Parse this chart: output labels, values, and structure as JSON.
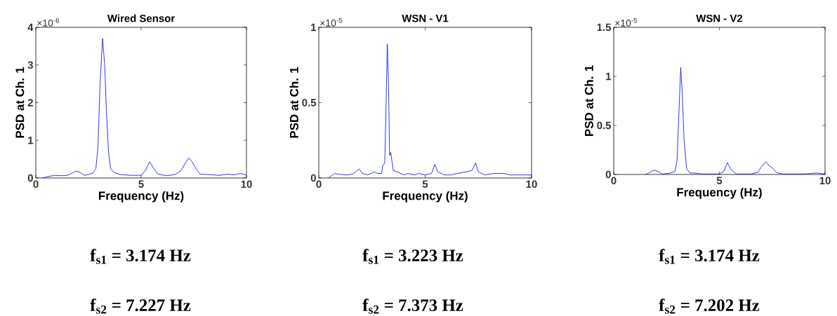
{
  "chart_data": [
    {
      "type": "line",
      "title": "Wired Sensor",
      "xlabel": "Frequency (Hz)",
      "ylabel": "PSD at Ch. 1",
      "annotations": [
        "×10$^{-6}$",
        "f$_{s1}$ = 3.174 Hz",
        "f$_{s2}$ = 7.227 Hz"
      ],
      "x": [
        0.3,
        0.6,
        0.9,
        1.2,
        1.5,
        1.7,
        1.9,
        2.1,
        2.3,
        2.5,
        2.7,
        2.85,
        2.95,
        3.05,
        3.17,
        3.27,
        3.35,
        3.45,
        3.55,
        3.7,
        4.0,
        4.5,
        5.0,
        5.2,
        5.4,
        5.6,
        5.8,
        6.2,
        6.6,
        6.9,
        7.1,
        7.25,
        7.4,
        7.6,
        7.8,
        8.2,
        8.7,
        9.1,
        9.4,
        9.7,
        10
      ],
      "series": [
        {
          "color": "#0000ff",
          "values": [
            0,
            0.04,
            0.07,
            0.06,
            0.07,
            0.12,
            0.18,
            0.15,
            0.07,
            0.09,
            0.13,
            0.25,
            0.8,
            2.5,
            3.7,
            3,
            1.8,
            0.7,
            0.25,
            0.15,
            0.09,
            0.07,
            0.07,
            0.2,
            0.43,
            0.25,
            0.1,
            0.06,
            0.09,
            0.2,
            0.4,
            0.53,
            0.45,
            0.25,
            0.1,
            0.09,
            0.07,
            0.1,
            0.08,
            0.12,
            0.08
          ]
        }
      ],
      "xlim": [
        0,
        10
      ],
      "ylim": [
        0,
        4
      ],
      "xticks": [
        0,
        5,
        10
      ],
      "yticks": [
        0,
        1,
        2,
        3,
        4
      ]
    },
    {
      "type": "line",
      "title": "WSN - V1",
      "xlabel": "Frequency (Hz)",
      "ylabel": "PSD at Ch. 1",
      "annotations": [
        "×10$^{-5}$",
        "f$_{s1}$ = 3.223 Hz",
        "f$_{s2}$ = 7.373 Hz"
      ],
      "x": [
        0.45,
        0.6,
        0.75,
        0.9,
        1.3,
        1.6,
        1.9,
        2.05,
        2.3,
        2.6,
        2.75,
        2.95,
        3.0,
        3.1,
        3.15,
        3.22,
        3.28,
        3.33,
        3.38,
        3.5,
        3.7,
        4.0,
        4.2,
        4.5,
        4.7,
        5.0,
        5.3,
        5.45,
        5.6,
        5.9,
        6.2,
        6.5,
        6.9,
        7.2,
        7.37,
        7.5,
        7.8,
        8.2,
        8.7,
        9.0,
        9.5,
        10
      ],
      "series": [
        {
          "color": "#0000ff",
          "values": [
            0,
            0.015,
            0.03,
            0.025,
            0.02,
            0.025,
            0.06,
            0.03,
            0.02,
            0.04,
            0.03,
            0.03,
            0.08,
            0.1,
            0.4,
            0.89,
            0.6,
            0.15,
            0.17,
            0.05,
            0.04,
            0.02,
            0.03,
            0.02,
            0.03,
            0.02,
            0.03,
            0.09,
            0.04,
            0.02,
            0.02,
            0.03,
            0.04,
            0.05,
            0.1,
            0.04,
            0.02,
            0.03,
            0.03,
            0.02,
            0.02,
            0.02
          ]
        }
      ],
      "xlim": [
        0,
        10
      ],
      "ylim": [
        0,
        1
      ],
      "xticks": [
        0,
        5,
        10
      ],
      "yticks": [
        0,
        0.5,
        1
      ]
    },
    {
      "type": "line",
      "title": "WSN - V2",
      "xlabel": "Frequency (Hz)",
      "ylabel": "PSD at Ch. 1",
      "annotations": [
        "×10$^{-5}$",
        "f$_{s1}$ = 3.174 Hz",
        "f$_{s2}$ = 7.202 Hz"
      ],
      "x": [
        1.5,
        1.7,
        1.9,
        2.1,
        2.3,
        2.6,
        2.9,
        3.0,
        3.08,
        3.17,
        3.25,
        3.33,
        3.45,
        3.6,
        3.8,
        4.2,
        5.0,
        5.2,
        5.38,
        5.55,
        5.8,
        6.5,
        6.8,
        7.0,
        7.2,
        7.35,
        7.5,
        7.7,
        8.0,
        9.0,
        9.6,
        10
      ],
      "series": [
        {
          "color": "#0000ff",
          "values": [
            0,
            0.02,
            0.045,
            0.03,
            0.005,
            0.01,
            0.03,
            0.15,
            0.6,
            1.09,
            0.8,
            0.35,
            0.06,
            0.015,
            0.015,
            0.005,
            0.005,
            0.03,
            0.12,
            0.05,
            0.005,
            0.005,
            0.02,
            0.08,
            0.13,
            0.09,
            0.07,
            0.02,
            0.005,
            0.005,
            0.015,
            0.005
          ]
        }
      ],
      "xlim": [
        0,
        10
      ],
      "ylim": [
        0,
        1.5
      ],
      "xticks": [
        0,
        5,
        10
      ],
      "yticks": [
        0,
        0.5,
        1,
        1.5
      ]
    }
  ]
}
